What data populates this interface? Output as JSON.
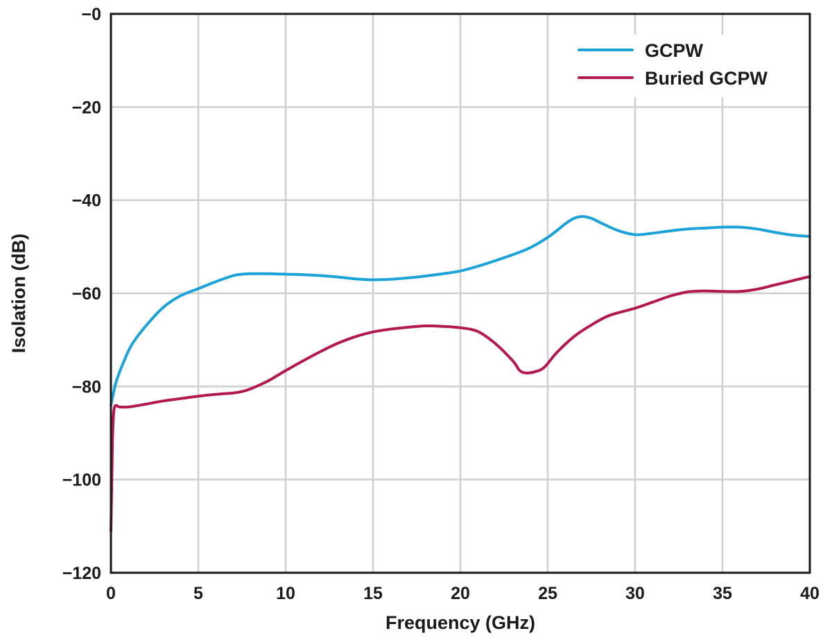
{
  "chart_data": {
    "type": "line",
    "title": "",
    "xlabel": "Frequency (GHz)",
    "ylabel": "Isolation (dB)",
    "xlim": [
      0,
      40
    ],
    "ylim": [
      -120,
      0
    ],
    "x_ticks": [
      "0",
      "5",
      "10",
      "15",
      "20",
      "25",
      "30",
      "35",
      "40"
    ],
    "y_ticks": [
      "−0",
      "−20",
      "−40",
      "−60",
      "−80",
      "−100",
      "−120"
    ],
    "grid": true,
    "legend_position": "top-right",
    "series": [
      {
        "name": "GCPW",
        "color": "#1ba3d9",
        "x": [
          0,
          0.3,
          0.7,
          1.2,
          2,
          3,
          4,
          5,
          6,
          7,
          7.5,
          8,
          9,
          10,
          11,
          12,
          13,
          14,
          15,
          16,
          17,
          18,
          19,
          20,
          21,
          22,
          23,
          24,
          25,
          25.5,
          26,
          26.5,
          27,
          27.5,
          28,
          29,
          30,
          31,
          32,
          33,
          34,
          35,
          36,
          37,
          38,
          39,
          40
        ],
        "y": [
          -84,
          -79,
          -75,
          -71,
          -67,
          -63,
          -60.5,
          -59,
          -57.5,
          -56.2,
          -55.9,
          -55.8,
          -55.8,
          -55.9,
          -56,
          -56.2,
          -56.5,
          -56.9,
          -57.1,
          -57,
          -56.7,
          -56.3,
          -55.8,
          -55.2,
          -54.2,
          -53,
          -51.7,
          -50.2,
          -48,
          -46.6,
          -45.1,
          -43.9,
          -43.5,
          -43.9,
          -44.8,
          -46.5,
          -47.4,
          -47.1,
          -46.6,
          -46.2,
          -46,
          -45.8,
          -45.8,
          -46.2,
          -46.9,
          -47.5,
          -47.8
        ]
      },
      {
        "name": "Buried GCPW",
        "color": "#b3194a",
        "x": [
          0,
          0.05,
          0.1,
          0.2,
          0.5,
          1,
          2,
          3,
          4,
          5,
          6,
          7,
          7.5,
          8,
          9,
          10,
          11,
          12,
          13,
          14,
          15,
          16,
          17,
          18,
          19,
          20,
          21,
          22,
          23,
          23.4,
          23.8,
          24.3,
          24.8,
          25.5,
          26.5,
          27.5,
          28.5,
          30,
          31,
          32,
          33,
          34,
          35,
          36,
          37,
          38,
          39,
          40
        ],
        "y": [
          -111,
          -100,
          -90,
          -84.5,
          -84.4,
          -84.4,
          -83.8,
          -83.1,
          -82.6,
          -82.1,
          -81.7,
          -81.4,
          -81.1,
          -80.5,
          -78.8,
          -76.6,
          -74.5,
          -72.5,
          -70.7,
          -69.3,
          -68.3,
          -67.7,
          -67.3,
          -67,
          -67.1,
          -67.4,
          -68.2,
          -70.8,
          -74.5,
          -76.6,
          -77.1,
          -76.8,
          -75.9,
          -72.8,
          -69.3,
          -66.8,
          -64.8,
          -63.2,
          -61.9,
          -60.6,
          -59.7,
          -59.5,
          -59.6,
          -59.6,
          -59.1,
          -58.2,
          -57.3,
          -56.4
        ]
      }
    ]
  }
}
